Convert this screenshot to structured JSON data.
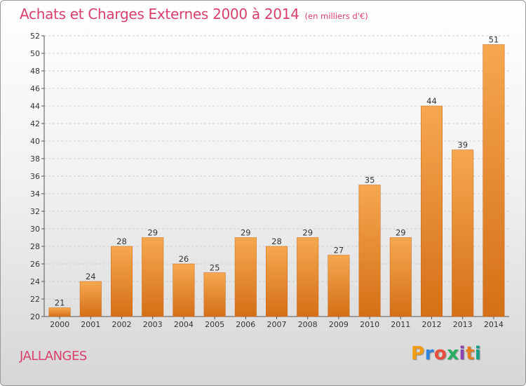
{
  "title": "Achats et Charges Externes 2000 à 2014",
  "subtitle": "(en milliers d'€)",
  "commune": "JALLANGES",
  "logo": {
    "letters": [
      "P",
      "r",
      "o",
      "x",
      "i",
      "t",
      "i"
    ],
    "colors": [
      "#f39c12",
      "#2e86de",
      "#e74c3c",
      "#27ae60",
      "#8e44ad",
      "#e67e22",
      "#16a085"
    ]
  },
  "colors": {
    "bar_top": "#f6a84f",
    "bar_bottom": "#d46f17",
    "title": "#d8406a"
  },
  "chart_data": {
    "type": "bar",
    "categories": [
      "2000",
      "2001",
      "2002",
      "2003",
      "2004",
      "2005",
      "2006",
      "2007",
      "2008",
      "2009",
      "2010",
      "2011",
      "2012",
      "2013",
      "2014"
    ],
    "values": [
      21,
      24,
      28,
      29,
      26,
      25,
      29,
      28,
      29,
      27,
      35,
      29,
      44,
      39,
      51
    ],
    "ylim": [
      20,
      52
    ],
    "yticks": [
      20,
      22,
      24,
      26,
      28,
      30,
      32,
      34,
      36,
      38,
      40,
      42,
      44,
      46,
      48,
      50,
      52
    ],
    "grid": true
  }
}
